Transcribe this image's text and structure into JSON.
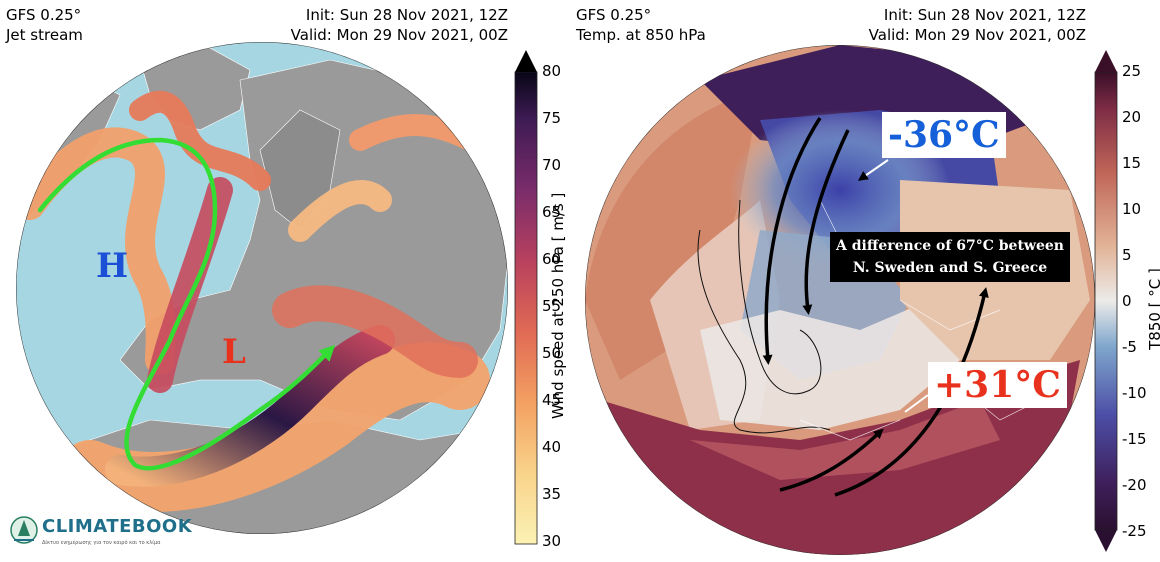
{
  "left_panel": {
    "model": "GFS 0.25°",
    "field": "Jet stream",
    "init": "Init: Sun 28 Nov 2021, 12Z",
    "valid": "Valid: Mon 29 Nov 2021, 00Z",
    "high_label": "H",
    "low_label": "L",
    "colorbar": {
      "label": "Wind speed at 250 hPa [ m/s ]",
      "ticks": [
        "80",
        "75",
        "70",
        "65",
        "60",
        "55",
        "50",
        "45",
        "40",
        "35",
        "30"
      ],
      "min": 30,
      "max": 80
    }
  },
  "right_panel": {
    "model": "GFS 0.25°",
    "field": "Temp. at 850 hPa",
    "init": "Init: Sun 28 Nov 2021, 12Z",
    "valid": "Valid: Mon 29 Nov 2021, 00Z",
    "cold_label": "-36°C",
    "warm_label": "+31°C",
    "annotation_line1": "A difference of 67°C between",
    "annotation_line2": "N. Sweden and S. Greece",
    "colorbar": {
      "label": "T850 [ °C ]",
      "ticks": [
        "25",
        "20",
        "15",
        "10",
        "5",
        "0",
        "-5",
        "-10",
        "-15",
        "-20",
        "-25"
      ],
      "min": -25,
      "max": 25
    }
  },
  "logo": {
    "name": "CLIMATEBOOK",
    "tagline": "Δίκτυο ενημέρωσης για τον καιρό και το κλίμα"
  },
  "colors": {
    "ocean": "#a6d6e2",
    "land": "#9a9a9a",
    "jet_arrow": "#33dd33",
    "high_color": "#1a4fd6",
    "low_color": "#e8321e",
    "cold_color": "#1560d8",
    "warm_color": "#e8321e"
  }
}
